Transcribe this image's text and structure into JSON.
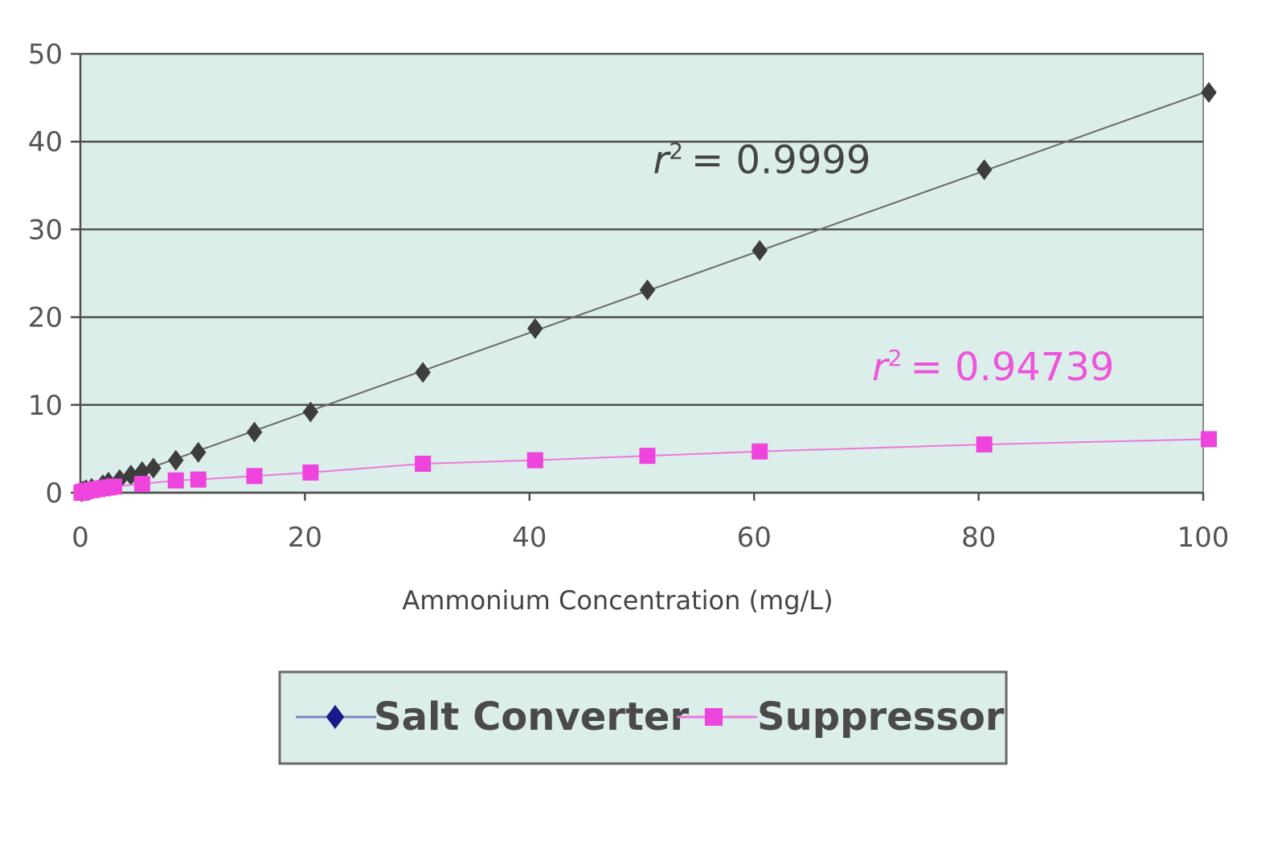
{
  "chart_data": {
    "type": "scatter",
    "title": "",
    "xlabel": "Ammonium Concentration (mg/L)",
    "ylabel": "",
    "xlim": [
      0,
      100
    ],
    "ylim": [
      0,
      50
    ],
    "x_ticks": [
      0,
      20,
      40,
      60,
      80,
      100
    ],
    "y_ticks": [
      0,
      10,
      20,
      30,
      40,
      50
    ],
    "grid": "horizontal",
    "legend_position": "bottom",
    "plot_background": "#dbeee9",
    "series": [
      {
        "name": "Salt Converter",
        "color": "#3d3d3d",
        "marker": "diamond",
        "legend_color": "#1a1a8c",
        "line_color": "#6a6a6a",
        "fit": "linear",
        "r_squared_label": "= 0.9999",
        "points": [
          [
            0.1,
            0.1
          ],
          [
            0.25,
            0.2
          ],
          [
            0.5,
            0.35
          ],
          [
            1,
            0.5
          ],
          [
            2,
            0.9
          ],
          [
            2.5,
            1.2
          ],
          [
            3.5,
            1.5
          ],
          [
            4.5,
            2.0
          ],
          [
            5.5,
            2.4
          ],
          [
            6.5,
            2.8
          ],
          [
            8.5,
            3.7
          ],
          [
            10.5,
            4.6
          ],
          [
            15.5,
            6.9
          ],
          [
            20.5,
            9.2
          ],
          [
            30.5,
            13.7
          ],
          [
            40.5,
            18.7
          ],
          [
            50.5,
            23.1
          ],
          [
            60.5,
            27.6
          ],
          [
            80.5,
            36.8
          ],
          [
            100.5,
            45.6
          ]
        ]
      },
      {
        "name": "Suppressor",
        "color": "#ee44dd",
        "marker": "square",
        "legend_color": "#ee44dd",
        "line_color": "#ee77dd",
        "fit": "curve",
        "r_squared_label": "= 0.94739",
        "points": [
          [
            0.1,
            0.0
          ],
          [
            0.25,
            0.1
          ],
          [
            0.5,
            0.2
          ],
          [
            1,
            0.3
          ],
          [
            1.5,
            0.4
          ],
          [
            2,
            0.5
          ],
          [
            2.5,
            0.6
          ],
          [
            3,
            0.7
          ],
          [
            5.5,
            1.0
          ],
          [
            8.5,
            1.4
          ],
          [
            10.5,
            1.5
          ],
          [
            15.5,
            1.9
          ],
          [
            20.5,
            2.3
          ],
          [
            30.5,
            3.3
          ],
          [
            40.5,
            3.7
          ],
          [
            50.5,
            4.2
          ],
          [
            60.5,
            4.7
          ],
          [
            80.5,
            5.5
          ],
          [
            100.5,
            6.1
          ]
        ]
      }
    ],
    "annotations": [
      {
        "series": "Salt Converter",
        "r_symbol": "r",
        "sup": "2",
        "text": "= 0.9999",
        "at": [
          51,
          36.4
        ],
        "color": "#444444"
      },
      {
        "series": "Suppressor",
        "r_symbol": "r",
        "sup": "2",
        "text": "= 0.94739",
        "at": [
          70.5,
          12.8
        ],
        "color": "#ee55dd"
      }
    ]
  }
}
